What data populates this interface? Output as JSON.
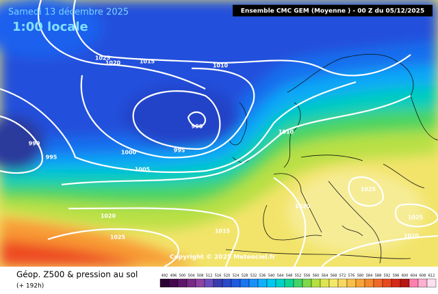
{
  "header": {
    "date": "Samedi 13 décembre 2025",
    "time": "1:00 locale",
    "model": "Ensemble CMC GEM  (Moyenne )  - 00 Z du 05/12/2025"
  },
  "copyright": "Copyright © 2025 Meteociel.fr",
  "footer": {
    "title": "Géop. Z500 & pression au sol",
    "lead": "(+ 192h)"
  },
  "isobar_labels": [
    1025,
    1020,
    1015,
    1010,
    990,
    995,
    1000,
    1005,
    990,
    995,
    1010,
    1025,
    1020,
    1025,
    1015,
    1020,
    1025,
    1020
  ],
  "legend": {
    "labels": [
      492,
      496,
      500,
      504,
      508,
      512,
      516,
      520,
      524,
      528,
      532,
      536,
      540,
      544,
      548,
      552,
      556,
      560,
      564,
      568,
      572,
      576,
      580,
      584,
      588,
      592,
      596,
      600,
      604,
      608,
      612
    ],
    "colors": [
      "#2b0033",
      "#45084f",
      "#5e176a",
      "#772a86",
      "#8e42a2",
      "#6a4cbf",
      "#3a3ab0",
      "#2a48c8",
      "#1f5ae0",
      "#1a74f0",
      "#1a90fa",
      "#10b0ff",
      "#00c8f0",
      "#00d2c8",
      "#10d494",
      "#40d468",
      "#7ed848",
      "#b4e040",
      "#dde650",
      "#f4e868",
      "#f8d860",
      "#f8c048",
      "#f8a438",
      "#f58830",
      "#f06828",
      "#e84820",
      "#d42818",
      "#b81412",
      "#ff80b0",
      "#ffb0d0",
      "#ffe0f0"
    ]
  }
}
